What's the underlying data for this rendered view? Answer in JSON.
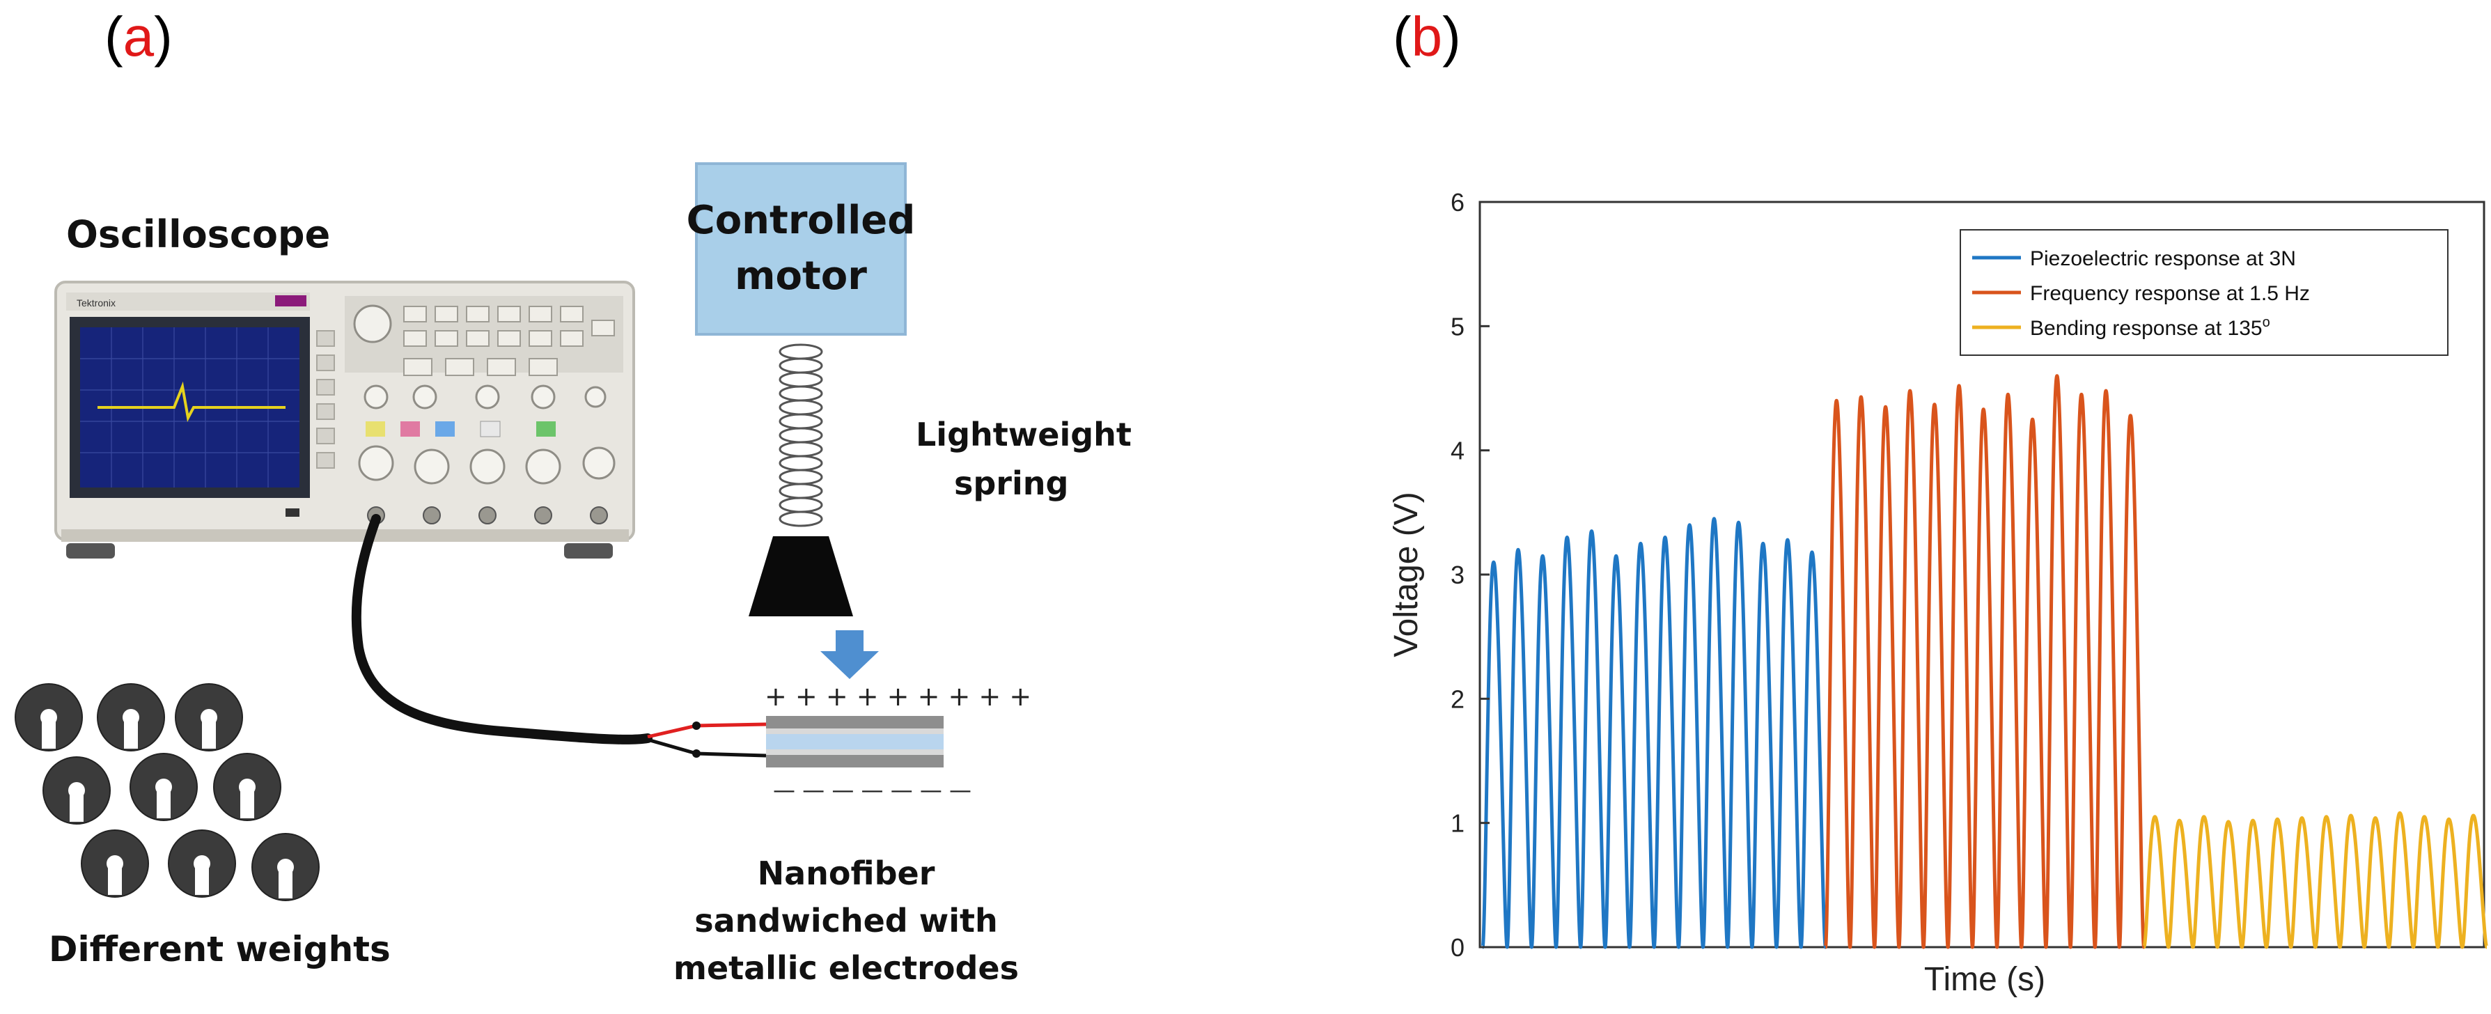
{
  "panel_a": {
    "letter_open": "(",
    "letter": "a",
    "letter_close": ")",
    "labels": {
      "oscilloscope": "Oscilloscope",
      "motor_line1": "Controlled",
      "motor_line2": "motor",
      "spring_line1": "Lightweight",
      "spring_line2": "spring",
      "nanofiber_line1": "Nanofiber",
      "nanofiber_line2": "sandwiched with",
      "nanofiber_line3": "metallic electrodes",
      "weights": "Different weights",
      "plus_signs": "+ + + + + + + +   +",
      "minus_signs": "— — — — — — —"
    },
    "oscilloscope_brand": "Tektronix",
    "colors": {
      "motor_box": "#a9cfe9",
      "arrow": "#4f8fd0",
      "cable": "#111111",
      "red_wire": "#e02020"
    }
  },
  "panel_b": {
    "letter_open": "(",
    "letter": "b",
    "letter_close": ")"
  },
  "chart_data": {
    "type": "line",
    "xlabel": "Time (s)",
    "ylabel": "Voltage (V)",
    "ylim": [
      0,
      6
    ],
    "yticks": [
      "0",
      "1",
      "2",
      "3",
      "4",
      "5",
      "6"
    ],
    "grid": false,
    "legend_position": "top-right",
    "series": [
      {
        "name": "Piezoelectric response at 3N",
        "color": "#1f77c4",
        "peaks": [
          3.1,
          3.2,
          3.15,
          3.3,
          3.35,
          3.15,
          3.25,
          3.3,
          3.4,
          3.45,
          3.42,
          3.25,
          3.28,
          3.18
        ]
      },
      {
        "name": "Frequency response at 1.5 Hz",
        "color": "#d9541c",
        "peaks": [
          4.4,
          4.43,
          4.35,
          4.48,
          4.37,
          4.52,
          4.33,
          4.45,
          4.25,
          4.6,
          4.45,
          4.48,
          4.28
        ]
      },
      {
        "name": "Bending response at 135°",
        "legend_text": "Bending response at 135",
        "legend_superscript": "o",
        "color": "#edb120",
        "peaks": [
          1.05,
          1.02,
          1.05,
          1.01,
          1.02,
          1.03,
          1.04,
          1.05,
          1.06,
          1.04,
          1.08,
          1.05,
          1.03,
          1.06
        ]
      }
    ]
  }
}
